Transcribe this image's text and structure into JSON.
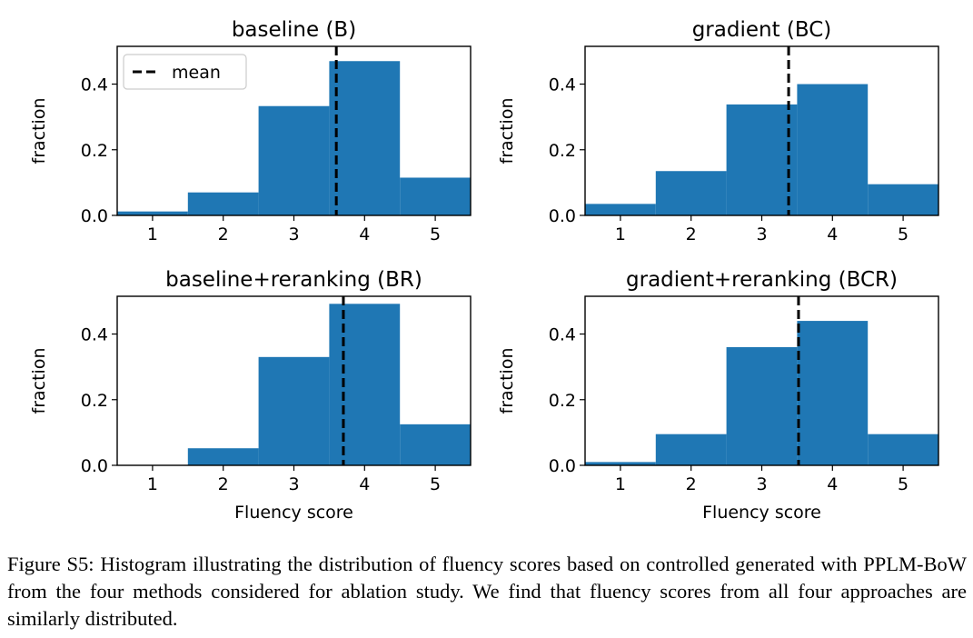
{
  "chart_data": [
    {
      "type": "bar",
      "title": "baseline (B)",
      "xlabel": "",
      "ylabel": "fraction",
      "categories": [
        1,
        2,
        3,
        4,
        5
      ],
      "values": [
        0.012,
        0.07,
        0.333,
        0.47,
        0.115
      ],
      "mean": 3.6,
      "xlim": [
        0.5,
        5.5
      ],
      "ylim": [
        0,
        0.515
      ],
      "yticks": [
        "0.0",
        "0.2",
        "0.4"
      ],
      "legend": {
        "label": "mean",
        "placement": "top-left"
      }
    },
    {
      "type": "bar",
      "title": "gradient (BC)",
      "xlabel": "",
      "ylabel": "fraction",
      "categories": [
        1,
        2,
        3,
        4,
        5
      ],
      "values": [
        0.035,
        0.135,
        0.338,
        0.4,
        0.095
      ],
      "mean": 3.38,
      "xlim": [
        0.5,
        5.5
      ],
      "ylim": [
        0,
        0.515
      ],
      "yticks": [
        "0.0",
        "0.2",
        "0.4"
      ]
    },
    {
      "type": "bar",
      "title": "baseline+reranking (BR)",
      "xlabel": "Fluency score",
      "ylabel": "fraction",
      "categories": [
        1,
        2,
        3,
        4,
        5
      ],
      "values": [
        0.0,
        0.052,
        0.33,
        0.492,
        0.125
      ],
      "mean": 3.7,
      "xlim": [
        0.5,
        5.5
      ],
      "ylim": [
        0,
        0.515
      ],
      "yticks": [
        "0.0",
        "0.2",
        "0.4"
      ]
    },
    {
      "type": "bar",
      "title": "gradient+reranking (BCR)",
      "xlabel": "Fluency score",
      "ylabel": "fraction",
      "categories": [
        1,
        2,
        3,
        4,
        5
      ],
      "values": [
        0.01,
        0.095,
        0.36,
        0.44,
        0.095
      ],
      "mean": 3.52,
      "xlim": [
        0.5,
        5.5
      ],
      "ylim": [
        0,
        0.515
      ],
      "yticks": [
        "0.0",
        "0.2",
        "0.4"
      ]
    }
  ],
  "caption": "Figure S5: Histogram illustrating the distribution of fluency scores based on controlled generated with PPLM-BoW from the four methods considered for ablation study. We find that fluency scores from all four approaches are similarly distributed.",
  "colors": {
    "bar": "#1f77b4",
    "mean_line": "#000000"
  }
}
